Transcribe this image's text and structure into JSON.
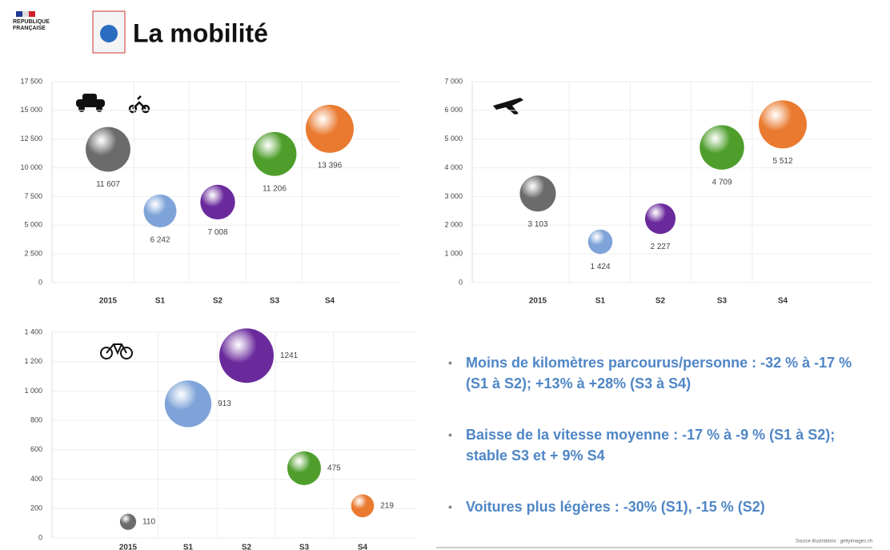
{
  "header": {
    "logo_text": "RÉPUBLIQUE FRANÇAISE",
    "title": "La mobilité"
  },
  "chart_data": [
    {
      "type": "bubble",
      "categories": [
        "2015",
        "S1",
        "S2",
        "S3",
        "S4"
      ],
      "values": [
        11607,
        6242,
        7008,
        11206,
        13396
      ],
      "value_labels": [
        "11 607",
        "6 242",
        "7 008",
        "11 206",
        "13 396"
      ],
      "colors": [
        "#6b6b6b",
        "#7ea3d8",
        "#6a2a9c",
        "#4f9e2c",
        "#ea7a30"
      ],
      "ylim": [
        0,
        17500
      ],
      "yticks": [
        0,
        {
          "value": 2500,
          "label": "2 500"
        },
        {
          "value": 5000,
          "label": "5 000"
        },
        {
          "value": 7500,
          "label": "7 500"
        },
        {
          "value": 10000,
          "label": "10 000"
        },
        {
          "value": 12500,
          "label": "12 500"
        },
        {
          "value": 15000,
          "label": "15 000"
        },
        {
          "value": 17500,
          "label": "17 500"
        }
      ],
      "grid": true
    },
    {
      "type": "bubble",
      "categories": [
        "2015",
        "S1",
        "S2",
        "S3",
        "S4"
      ],
      "values": [
        3103,
        1424,
        2227,
        4709,
        5512
      ],
      "value_labels": [
        "3 103",
        "1 424",
        "2 227",
        "4 709",
        "5 512"
      ],
      "colors": [
        "#6b6b6b",
        "#7ea3d8",
        "#6a2a9c",
        "#4f9e2c",
        "#ea7a30"
      ],
      "ylim": [
        0,
        7000
      ],
      "yticks": [
        0,
        {
          "value": 1000,
          "label": "1 000"
        },
        {
          "value": 2000,
          "label": "2 000"
        },
        {
          "value": 3000,
          "label": "3 000"
        },
        {
          "value": 4000,
          "label": "4 000"
        },
        {
          "value": 5000,
          "label": "5 000"
        },
        {
          "value": 6000,
          "label": "6 000"
        },
        {
          "value": 7000,
          "label": "7 000"
        }
      ],
      "grid": true
    },
    {
      "type": "bubble",
      "categories": [
        "2015",
        "S1",
        "S2",
        "S3",
        "S4"
      ],
      "values": [
        110,
        913,
        1241,
        475,
        219
      ],
      "colors": [
        "#6b6b6b",
        "#7ea3d8",
        "#6a2a9c",
        "#4f9e2c",
        "#ea7a30"
      ],
      "ylim": [
        0,
        1400
      ],
      "yticks": [
        0,
        200,
        400,
        600,
        800,
        {
          "value": 1000,
          "label": "1 000"
        },
        {
          "value": 1200,
          "label": "1 200"
        },
        {
          "value": 1400,
          "label": "1 400"
        }
      ],
      "grid": true
    }
  ],
  "bullets": [
    "Moins de kilomètres parcourus/personne : -32 % à -17 % (S1 à S2); +13% à +28% (S3 à S4)",
    "Baisse de la vitesse moyenne : -17 % à -9 % (S1 à S2); stable S3 et + 9% S4",
    "Voitures plus légères : -30% (S1), -15 % (S2)"
  ],
  "source": "Source illustrations : gettyimages.ch"
}
